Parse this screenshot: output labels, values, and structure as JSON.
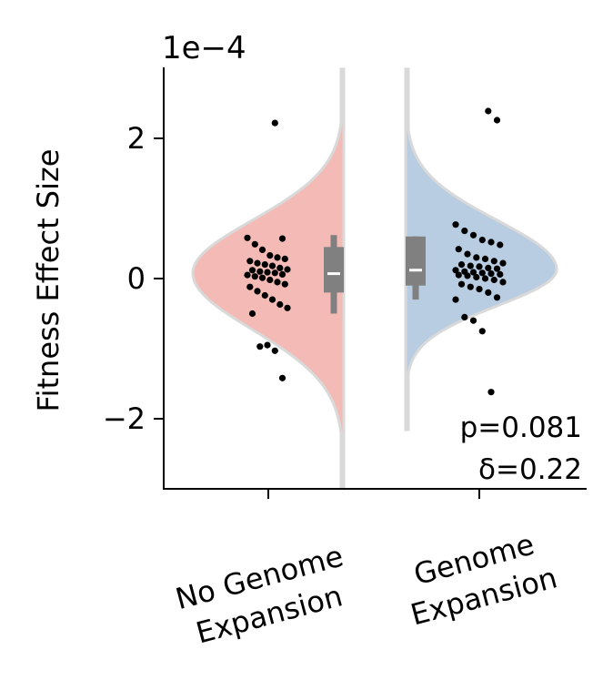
{
  "chart_data": {
    "type": "violin",
    "title": "",
    "ylabel": "Fitness Effect Size",
    "y_scale_label": "1e−4",
    "ylim": [
      -3.0,
      3.0
    ],
    "yticks": [
      -2,
      0,
      2
    ],
    "ytick_labels": [
      "−2",
      "0",
      "2"
    ],
    "categories": [
      "No Genome Expansion",
      "Genome Expansion"
    ],
    "category_labels": [
      [
        "No Genome",
        "Expansion"
      ],
      [
        "Genome",
        "Expansion"
      ]
    ],
    "annotation": [
      "p=0.081",
      "δ=0.22"
    ],
    "colors": {
      "no_expansion_fill": "#f4bbb6",
      "expansion_fill": "#b8cde1",
      "outline": "#d9d9d9",
      "box": "#808080",
      "median": "#ffffff",
      "points": "#000000"
    },
    "series": [
      {
        "side": "left",
        "box": {
          "q1": -0.2,
          "median": 0.07,
          "q3": 0.45,
          "whisker_low": -0.5,
          "whisker_high": 0.62
        },
        "points": [
          2.22,
          0.57,
          0.58,
          0.49,
          0.41,
          0.33,
          0.3,
          0.28,
          0.25,
          0.22,
          0.2,
          0.18,
          0.15,
          0.13,
          0.12,
          0.1,
          0.09,
          0.08,
          0.06,
          0.05,
          0.03,
          0.01,
          -0.02,
          -0.05,
          -0.08,
          -0.12,
          -0.18,
          -0.24,
          -0.3,
          -0.37,
          -0.42,
          -0.5,
          -0.97,
          -0.95,
          -1.03,
          -1.42
        ]
      },
      {
        "side": "right",
        "box": {
          "q1": -0.1,
          "median": 0.12,
          "q3": 0.6,
          "whisker_low": -0.3,
          "whisker_high": 0.6
        },
        "points": [
          2.39,
          2.26,
          0.77,
          0.68,
          0.62,
          0.55,
          0.52,
          0.48,
          0.42,
          0.35,
          0.3,
          0.28,
          0.25,
          0.22,
          0.2,
          0.18,
          0.17,
          0.15,
          0.14,
          0.12,
          0.1,
          0.09,
          0.08,
          0.07,
          0.06,
          0.05,
          0.04,
          0.02,
          0.0,
          -0.02,
          -0.05,
          -0.08,
          -0.12,
          -0.15,
          -0.2,
          -0.27,
          -0.3,
          -0.55,
          -0.6,
          -0.75,
          -1.62
        ]
      }
    ]
  }
}
